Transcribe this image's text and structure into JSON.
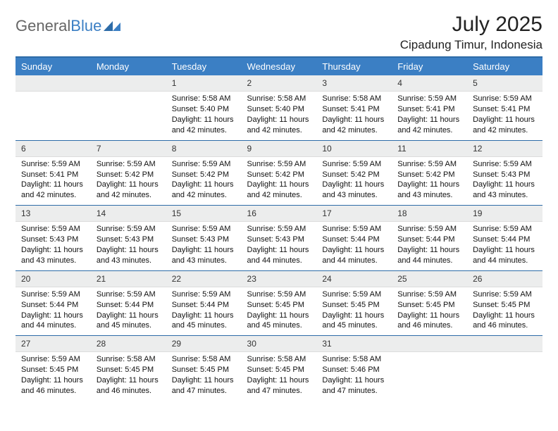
{
  "brand": {
    "part1": "General",
    "part2": "Blue"
  },
  "title": "July 2025",
  "location": "Cipadung Timur, Indonesia",
  "colors": {
    "header_bg": "#3b7fc4",
    "header_text": "#ffffff",
    "rule": "#2e6ca8",
    "daybar_bg": "#eceded",
    "text": "#111111"
  },
  "weekdays": [
    "Sunday",
    "Monday",
    "Tuesday",
    "Wednesday",
    "Thursday",
    "Friday",
    "Saturday"
  ],
  "weeks": [
    [
      {
        "n": "",
        "lines": [
          "",
          "",
          "",
          ""
        ]
      },
      {
        "n": "",
        "lines": [
          "",
          "",
          "",
          ""
        ]
      },
      {
        "n": "1",
        "lines": [
          "Sunrise: 5:58 AM",
          "Sunset: 5:40 PM",
          "Daylight: 11 hours",
          "and 42 minutes."
        ]
      },
      {
        "n": "2",
        "lines": [
          "Sunrise: 5:58 AM",
          "Sunset: 5:40 PM",
          "Daylight: 11 hours",
          "and 42 minutes."
        ]
      },
      {
        "n": "3",
        "lines": [
          "Sunrise: 5:58 AM",
          "Sunset: 5:41 PM",
          "Daylight: 11 hours",
          "and 42 minutes."
        ]
      },
      {
        "n": "4",
        "lines": [
          "Sunrise: 5:59 AM",
          "Sunset: 5:41 PM",
          "Daylight: 11 hours",
          "and 42 minutes."
        ]
      },
      {
        "n": "5",
        "lines": [
          "Sunrise: 5:59 AM",
          "Sunset: 5:41 PM",
          "Daylight: 11 hours",
          "and 42 minutes."
        ]
      }
    ],
    [
      {
        "n": "6",
        "lines": [
          "Sunrise: 5:59 AM",
          "Sunset: 5:41 PM",
          "Daylight: 11 hours",
          "and 42 minutes."
        ]
      },
      {
        "n": "7",
        "lines": [
          "Sunrise: 5:59 AM",
          "Sunset: 5:42 PM",
          "Daylight: 11 hours",
          "and 42 minutes."
        ]
      },
      {
        "n": "8",
        "lines": [
          "Sunrise: 5:59 AM",
          "Sunset: 5:42 PM",
          "Daylight: 11 hours",
          "and 42 minutes."
        ]
      },
      {
        "n": "9",
        "lines": [
          "Sunrise: 5:59 AM",
          "Sunset: 5:42 PM",
          "Daylight: 11 hours",
          "and 42 minutes."
        ]
      },
      {
        "n": "10",
        "lines": [
          "Sunrise: 5:59 AM",
          "Sunset: 5:42 PM",
          "Daylight: 11 hours",
          "and 43 minutes."
        ]
      },
      {
        "n": "11",
        "lines": [
          "Sunrise: 5:59 AM",
          "Sunset: 5:42 PM",
          "Daylight: 11 hours",
          "and 43 minutes."
        ]
      },
      {
        "n": "12",
        "lines": [
          "Sunrise: 5:59 AM",
          "Sunset: 5:43 PM",
          "Daylight: 11 hours",
          "and 43 minutes."
        ]
      }
    ],
    [
      {
        "n": "13",
        "lines": [
          "Sunrise: 5:59 AM",
          "Sunset: 5:43 PM",
          "Daylight: 11 hours",
          "and 43 minutes."
        ]
      },
      {
        "n": "14",
        "lines": [
          "Sunrise: 5:59 AM",
          "Sunset: 5:43 PM",
          "Daylight: 11 hours",
          "and 43 minutes."
        ]
      },
      {
        "n": "15",
        "lines": [
          "Sunrise: 5:59 AM",
          "Sunset: 5:43 PM",
          "Daylight: 11 hours",
          "and 43 minutes."
        ]
      },
      {
        "n": "16",
        "lines": [
          "Sunrise: 5:59 AM",
          "Sunset: 5:43 PM",
          "Daylight: 11 hours",
          "and 44 minutes."
        ]
      },
      {
        "n": "17",
        "lines": [
          "Sunrise: 5:59 AM",
          "Sunset: 5:44 PM",
          "Daylight: 11 hours",
          "and 44 minutes."
        ]
      },
      {
        "n": "18",
        "lines": [
          "Sunrise: 5:59 AM",
          "Sunset: 5:44 PM",
          "Daylight: 11 hours",
          "and 44 minutes."
        ]
      },
      {
        "n": "19",
        "lines": [
          "Sunrise: 5:59 AM",
          "Sunset: 5:44 PM",
          "Daylight: 11 hours",
          "and 44 minutes."
        ]
      }
    ],
    [
      {
        "n": "20",
        "lines": [
          "Sunrise: 5:59 AM",
          "Sunset: 5:44 PM",
          "Daylight: 11 hours",
          "and 44 minutes."
        ]
      },
      {
        "n": "21",
        "lines": [
          "Sunrise: 5:59 AM",
          "Sunset: 5:44 PM",
          "Daylight: 11 hours",
          "and 45 minutes."
        ]
      },
      {
        "n": "22",
        "lines": [
          "Sunrise: 5:59 AM",
          "Sunset: 5:44 PM",
          "Daylight: 11 hours",
          "and 45 minutes."
        ]
      },
      {
        "n": "23",
        "lines": [
          "Sunrise: 5:59 AM",
          "Sunset: 5:45 PM",
          "Daylight: 11 hours",
          "and 45 minutes."
        ]
      },
      {
        "n": "24",
        "lines": [
          "Sunrise: 5:59 AM",
          "Sunset: 5:45 PM",
          "Daylight: 11 hours",
          "and 45 minutes."
        ]
      },
      {
        "n": "25",
        "lines": [
          "Sunrise: 5:59 AM",
          "Sunset: 5:45 PM",
          "Daylight: 11 hours",
          "and 46 minutes."
        ]
      },
      {
        "n": "26",
        "lines": [
          "Sunrise: 5:59 AM",
          "Sunset: 5:45 PM",
          "Daylight: 11 hours",
          "and 46 minutes."
        ]
      }
    ],
    [
      {
        "n": "27",
        "lines": [
          "Sunrise: 5:59 AM",
          "Sunset: 5:45 PM",
          "Daylight: 11 hours",
          "and 46 minutes."
        ]
      },
      {
        "n": "28",
        "lines": [
          "Sunrise: 5:58 AM",
          "Sunset: 5:45 PM",
          "Daylight: 11 hours",
          "and 46 minutes."
        ]
      },
      {
        "n": "29",
        "lines": [
          "Sunrise: 5:58 AM",
          "Sunset: 5:45 PM",
          "Daylight: 11 hours",
          "and 47 minutes."
        ]
      },
      {
        "n": "30",
        "lines": [
          "Sunrise: 5:58 AM",
          "Sunset: 5:45 PM",
          "Daylight: 11 hours",
          "and 47 minutes."
        ]
      },
      {
        "n": "31",
        "lines": [
          "Sunrise: 5:58 AM",
          "Sunset: 5:46 PM",
          "Daylight: 11 hours",
          "and 47 minutes."
        ]
      },
      {
        "n": "",
        "lines": [
          "",
          "",
          "",
          ""
        ]
      },
      {
        "n": "",
        "lines": [
          "",
          "",
          "",
          ""
        ]
      }
    ]
  ]
}
